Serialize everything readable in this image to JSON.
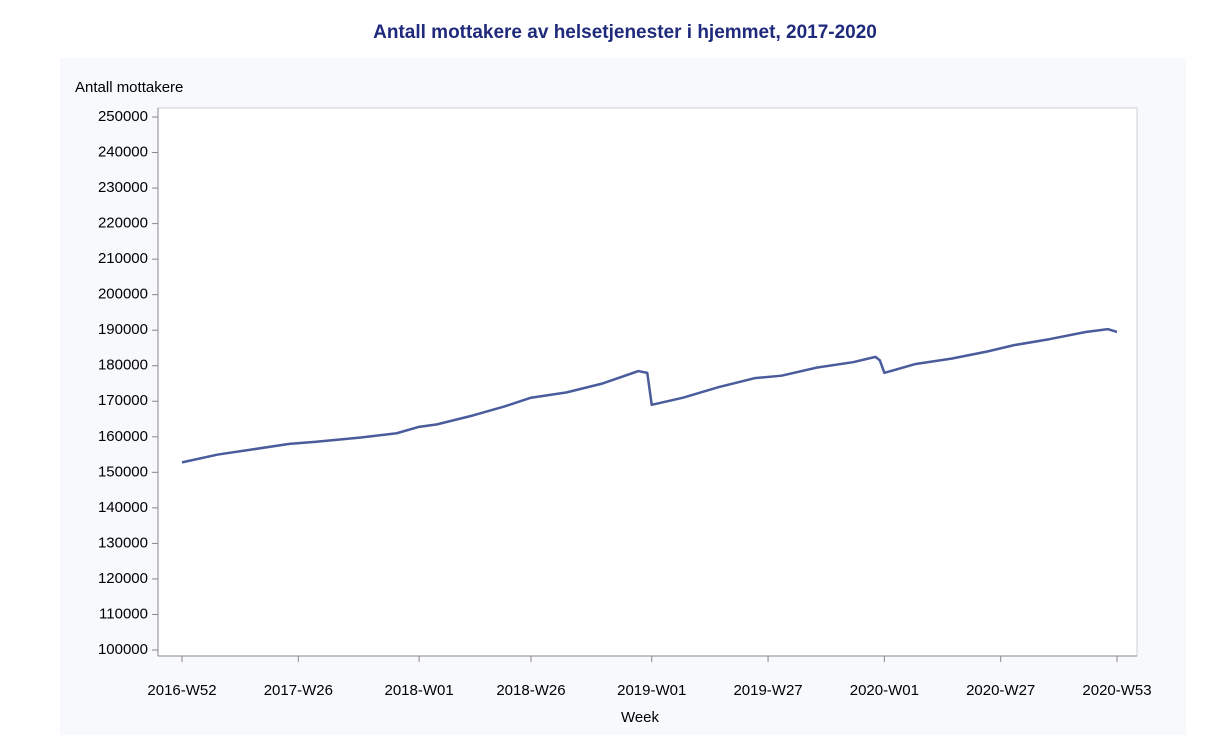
{
  "chart_data": {
    "type": "line",
    "title": "Antall mottakere av helsetjenester i hjemmet, 2017-2020",
    "y_label": "Antall mottakere",
    "x_label": "Week",
    "x": [
      "2016-W52",
      "2017-W08",
      "2017-W16",
      "2017-W24",
      "2017-W30",
      "2017-W40",
      "2017-W48",
      "2018-W01",
      "2018-W05",
      "2018-W13",
      "2018-W20",
      "2018-W26",
      "2018-W34",
      "2018-W42",
      "2018-W50",
      "2018-W52",
      "2019-W01",
      "2019-W08",
      "2019-W16",
      "2019-W24",
      "2019-W30",
      "2019-W38",
      "2019-W46",
      "2019-W51",
      "2019-W52",
      "2020-W01",
      "2020-W08",
      "2020-W16",
      "2020-W24",
      "2020-W30",
      "2020-W38",
      "2020-W46",
      "2020-W51",
      "2020-W53"
    ],
    "series": [
      {
        "name": "Antall mottakere",
        "color": "#4a5c9c",
        "values": [
          152800,
          155000,
          156500,
          158000,
          158600,
          159800,
          161000,
          162800,
          163500,
          166000,
          168500,
          171000,
          172500,
          175000,
          178500,
          178000,
          169000,
          171000,
          174000,
          176500,
          177200,
          179500,
          181000,
          182500,
          181500,
          178000,
          180500,
          182000,
          184000,
          185800,
          187500,
          189500,
          190300,
          189500
        ]
      }
    ],
    "xticks": [
      "2016-W52",
      "2017-W26",
      "2018-W01",
      "2018-W26",
      "2019-W01",
      "2019-W27",
      "2020-W01",
      "2020-W27",
      "2020-W53"
    ],
    "ylim": [
      100000,
      250000
    ],
    "yticks": [
      100000,
      110000,
      120000,
      130000,
      140000,
      150000,
      160000,
      170000,
      180000,
      190000,
      200000,
      210000,
      220000,
      230000,
      240000,
      250000
    ]
  }
}
